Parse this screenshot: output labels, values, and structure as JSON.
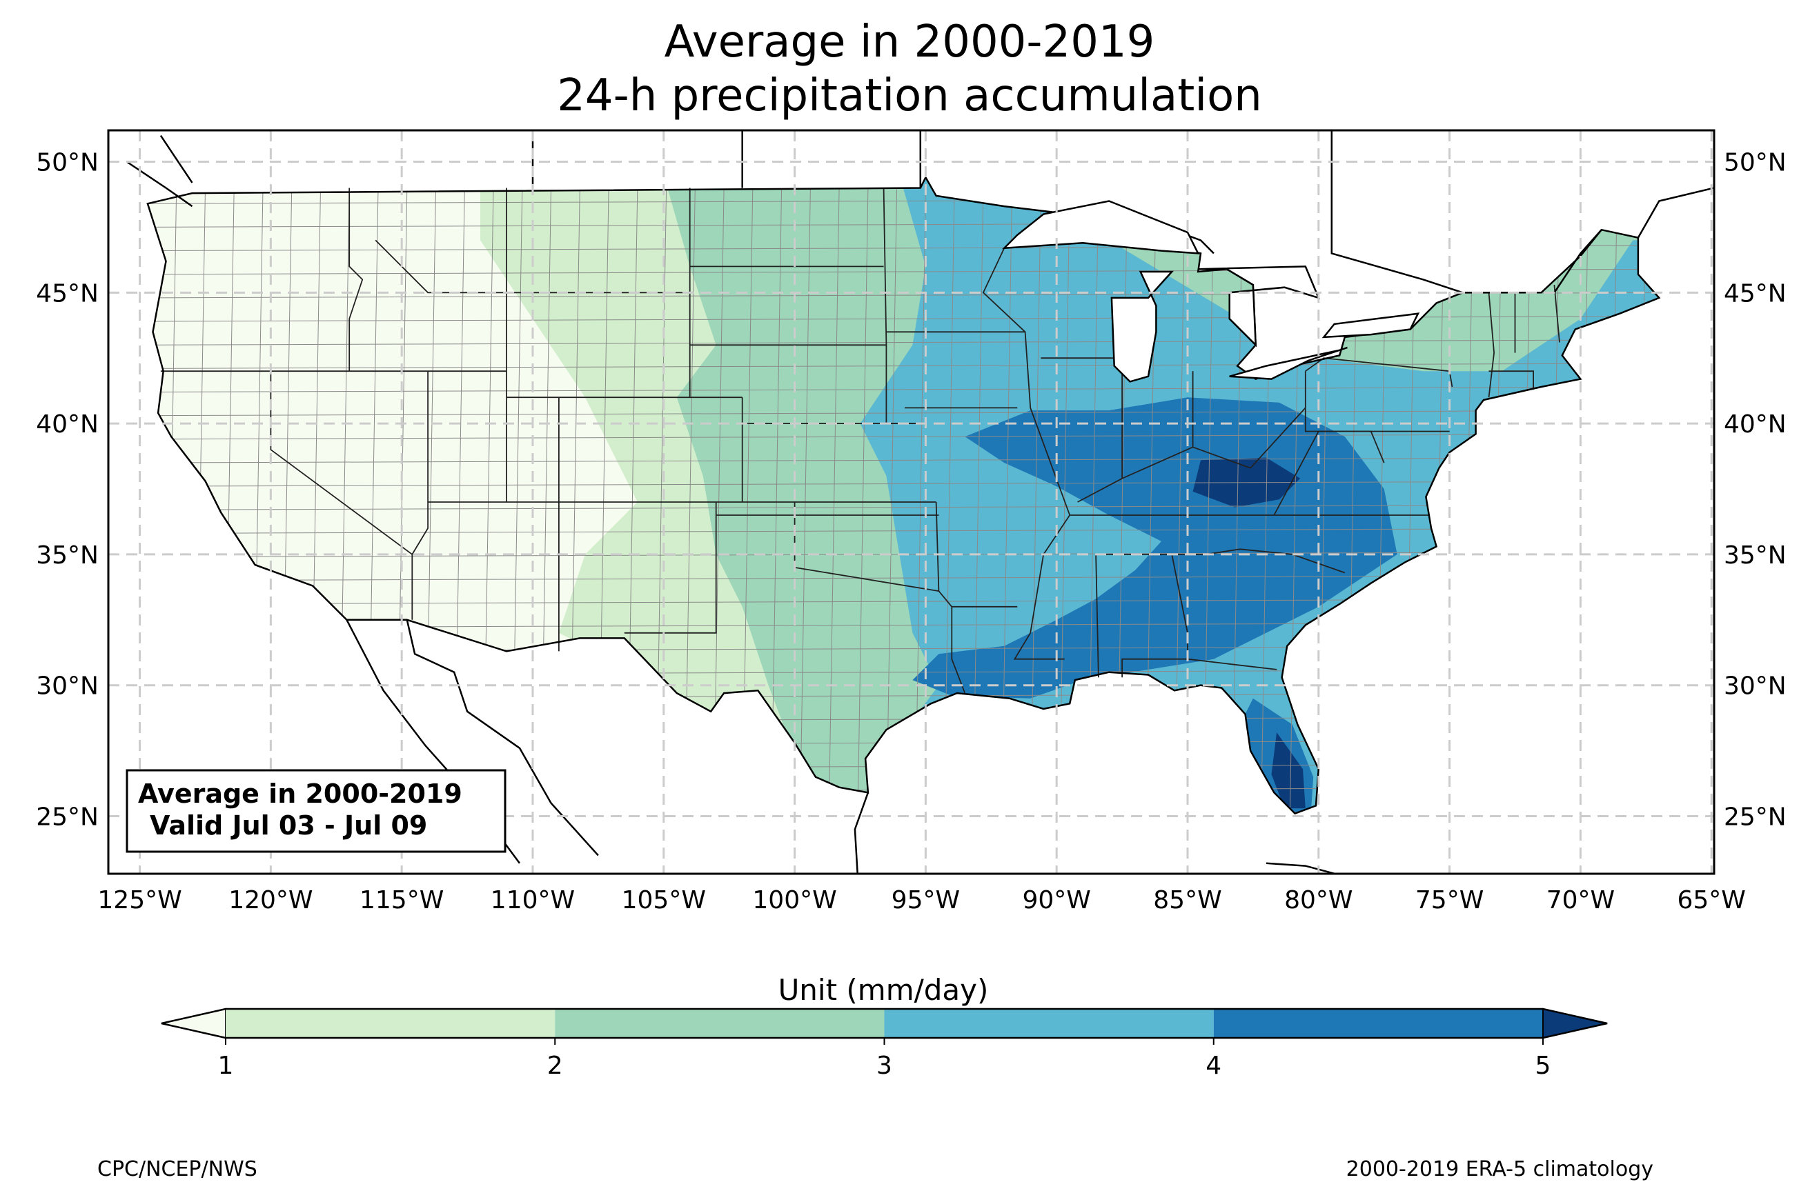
{
  "title": {
    "line1": "Average in 2000-2019",
    "line2": "24-h precipitation accumulation"
  },
  "map": {
    "lon_range": [
      -126.2,
      -64.9
    ],
    "lat_range": [
      22.8,
      51.2
    ],
    "lon_ticks": [
      {
        "value": -125,
        "label": "125°W"
      },
      {
        "value": -120,
        "label": "120°W"
      },
      {
        "value": -115,
        "label": "115°W"
      },
      {
        "value": -110,
        "label": "110°W"
      },
      {
        "value": -105,
        "label": "105°W"
      },
      {
        "value": -100,
        "label": "100°W"
      },
      {
        "value": -95,
        "label": "95°W"
      },
      {
        "value": -90,
        "label": "90°W"
      },
      {
        "value": -85,
        "label": "85°W"
      },
      {
        "value": -80,
        "label": "80°W"
      },
      {
        "value": -75,
        "label": "75°W"
      },
      {
        "value": -70,
        "label": "70°W"
      },
      {
        "value": -65,
        "label": "65°W"
      }
    ],
    "lat_ticks": [
      {
        "value": 50,
        "label": "50°N"
      },
      {
        "value": 45,
        "label": "45°N"
      },
      {
        "value": 40,
        "label": "40°N"
      },
      {
        "value": 35,
        "label": "35°N"
      },
      {
        "value": 30,
        "label": "30°N"
      },
      {
        "value": 25,
        "label": "25°N"
      }
    ],
    "gridlines": true,
    "fill_levels": {
      "lt1": "#f7fcf0",
      "1-2": "#d3eecd",
      "2-3": "#9dd6b8",
      "3-4": "#5ab8d2",
      "4-5": "#1f78b6",
      "gt5": "#0c3b7a"
    }
  },
  "label_box": {
    "line1": "Average in 2000-2019",
    "line2": "Valid Jul 03 - Jul 09"
  },
  "colorbar": {
    "title": "Unit (mm/day)",
    "ticks": [
      "1",
      "2",
      "3",
      "4",
      "5"
    ],
    "colors": [
      "#f7fcf0",
      "#d3eecd",
      "#9dd6b8",
      "#5ab8d2",
      "#1f78b6",
      "#0c3b7a"
    ],
    "extend": "both"
  },
  "footer": {
    "left": "CPC/NCEP/NWS",
    "right": "2000-2019 ERA-5 climatology"
  }
}
